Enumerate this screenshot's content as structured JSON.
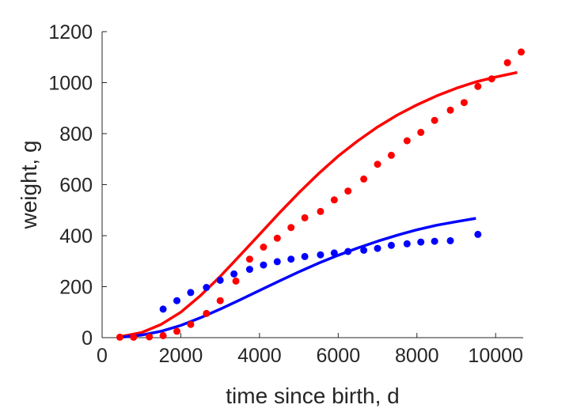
{
  "chart_data": {
    "type": "scatter",
    "xlabel": "time since birth, d",
    "ylabel": "weight, g",
    "xlim": [
      0,
      10700
    ],
    "ylim": [
      0,
      1200
    ],
    "xticks": [
      0,
      2000,
      4000,
      6000,
      8000,
      10000
    ],
    "yticks": [
      0,
      200,
      400,
      600,
      800,
      1000,
      1200
    ],
    "grid": false,
    "legend": "none",
    "series": [
      {
        "kind": "points",
        "color": "#ff0000",
        "x": [
          450,
          800,
          1200,
          1550,
          1900,
          2250,
          2650,
          3000,
          3400,
          3750,
          4100,
          4450,
          4800,
          5150,
          5550,
          5900,
          6250,
          6650,
          7000,
          7350,
          7750,
          8100,
          8450,
          8850,
          9200,
          9550,
          9900,
          10300,
          10650
        ],
        "y": [
          2,
          2,
          3,
          8,
          25,
          52,
          95,
          145,
          222,
          308,
          355,
          390,
          432,
          470,
          495,
          540,
          575,
          622,
          680,
          715,
          772,
          805,
          852,
          892,
          922,
          985,
          1015,
          1078,
          1120
        ]
      },
      {
        "kind": "points",
        "color": "#0000ff",
        "x": [
          1550,
          1900,
          2250,
          2650,
          3000,
          3350,
          3750,
          4100,
          4450,
          4800,
          5150,
          5550,
          5900,
          6250,
          6650,
          7000,
          7350,
          7750,
          8100,
          8450,
          8850,
          9550
        ],
        "y": [
          112,
          145,
          177,
          197,
          225,
          250,
          268,
          285,
          298,
          308,
          318,
          325,
          332,
          338,
          343,
          350,
          362,
          368,
          375,
          378,
          380,
          405
        ]
      },
      {
        "kind": "line",
        "color": "#ff0000",
        "x": [
          500,
          1000,
          1500,
          2000,
          2500,
          3000,
          3500,
          4000,
          4500,
          5000,
          5500,
          6000,
          6500,
          7000,
          7500,
          8000,
          8500,
          9000,
          9500,
          10000,
          10550
        ],
        "y": [
          5,
          20,
          52,
          100,
          165,
          240,
          322,
          405,
          488,
          568,
          643,
          712,
          772,
          826,
          873,
          913,
          948,
          978,
          1003,
          1022,
          1040
        ]
      },
      {
        "kind": "line",
        "color": "#0000ff",
        "x": [
          500,
          1000,
          1500,
          2000,
          2500,
          3000,
          3500,
          4000,
          4500,
          5000,
          5500,
          6000,
          6500,
          7000,
          7500,
          8000,
          8500,
          9000,
          9500
        ],
        "y": [
          2,
          10,
          25,
          48,
          78,
          112,
          148,
          185,
          222,
          258,
          292,
          323,
          352,
          378,
          402,
          423,
          441,
          455,
          468
        ]
      }
    ]
  }
}
